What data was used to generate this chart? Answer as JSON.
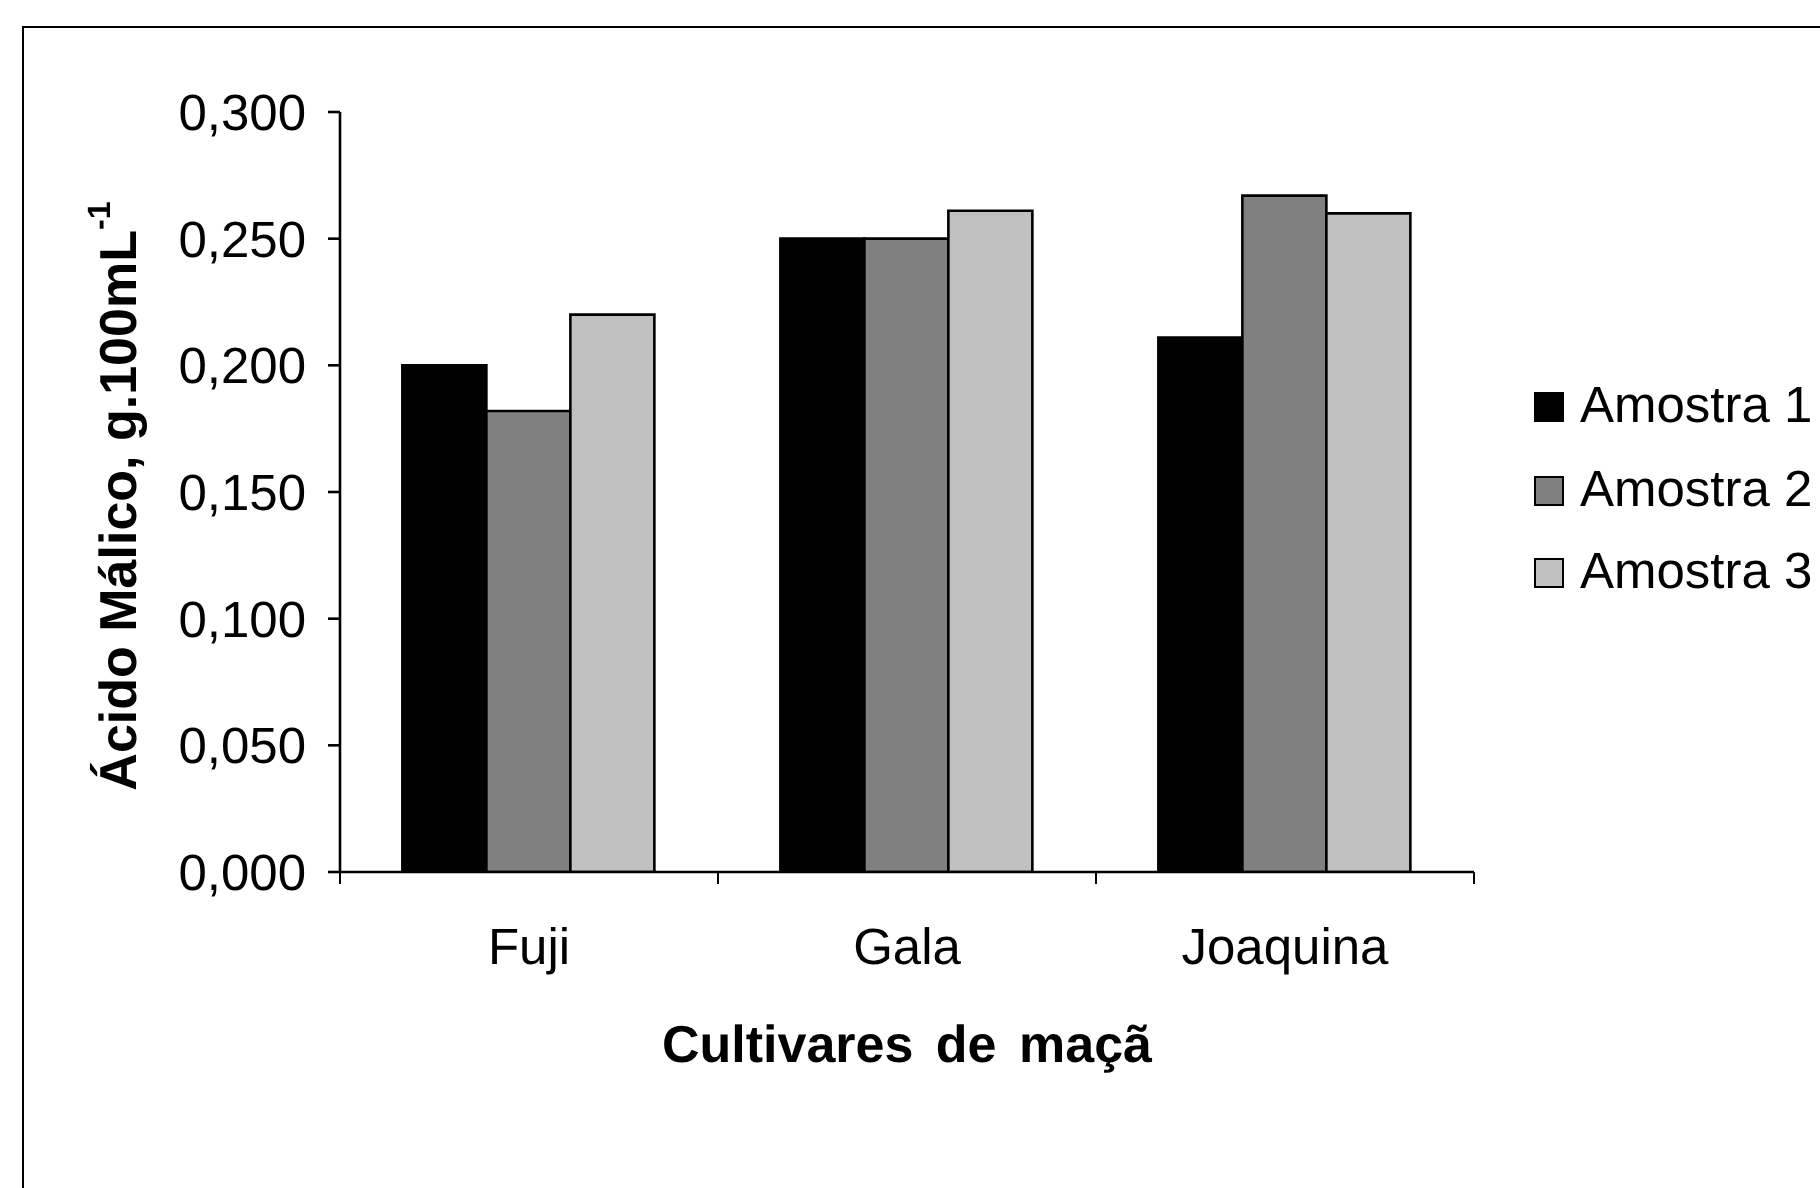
{
  "chart_data": {
    "type": "bar",
    "xlabel": "Cultivares de maçã",
    "ylabel": "Ácido Málico, g.100mL$^{-1}$",
    "categories": [
      "Fuji",
      "Gala",
      "Joaquina"
    ],
    "series": [
      {
        "name": "Amostra 1",
        "color": "#000000",
        "values": [
          0.2,
          0.25,
          0.211
        ]
      },
      {
        "name": "Amostra 2",
        "color": "#808080",
        "values": [
          0.182,
          0.25,
          0.267
        ]
      },
      {
        "name": "Amostra 3",
        "color": "#c0c0c0",
        "values": [
          0.22,
          0.261,
          0.26
        ]
      }
    ],
    "ylim": [
      0,
      0.3
    ],
    "yticks": [
      {
        "value": 0,
        "label": "0,000"
      },
      {
        "value": 0.05,
        "label": "0,050"
      },
      {
        "value": 0.1,
        "label": "0,100"
      },
      {
        "value": 0.15,
        "label": "0,150"
      },
      {
        "value": 0.2,
        "label": "0,200"
      },
      {
        "value": 0.25,
        "label": "0,250"
      },
      {
        "value": 0.3,
        "label": "0,300"
      }
    ],
    "legend": "right",
    "grid": false
  }
}
